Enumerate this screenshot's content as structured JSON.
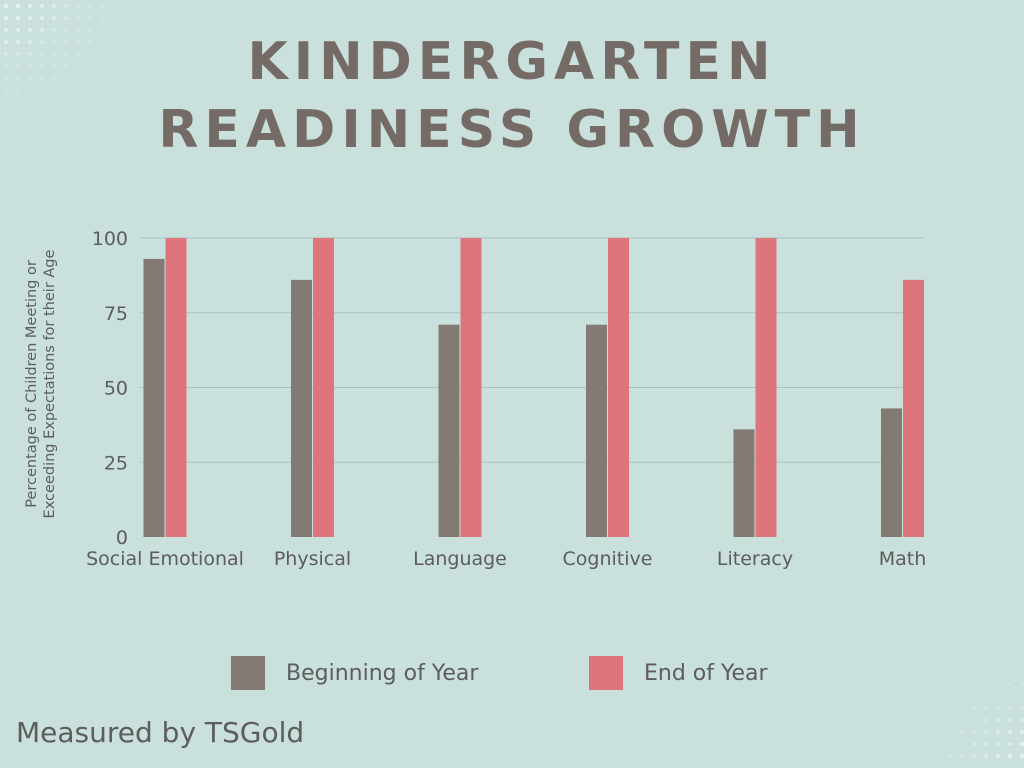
{
  "colors": {
    "background": "#c9e0dc",
    "title": "#756b66",
    "beginning": "#837a74",
    "end": "#de757c",
    "grid": "#a9c2be",
    "text": "#5d5d5d"
  },
  "footer": "Measured by TSGold",
  "chart_data": {
    "type": "bar",
    "title": [
      "KINDERGARTEN",
      "READINESS GROWTH"
    ],
    "ylabel": [
      "Percentage of Children Meeting or",
      "Exceeding Expectations for their Age"
    ],
    "xlabel": "",
    "ylim": [
      0,
      100
    ],
    "yticks": [
      0,
      25,
      50,
      75,
      100
    ],
    "grid": true,
    "legend_position": "bottom",
    "categories": [
      "Social Emotional",
      "Physical",
      "Language",
      "Cognitive",
      "Literacy",
      "Math"
    ],
    "series": [
      {
        "name": "Beginning of Year",
        "values": [
          93,
          86,
          71,
          71,
          36,
          43
        ]
      },
      {
        "name": "End of Year",
        "values": [
          100,
          100,
          100,
          100,
          100,
          86
        ]
      }
    ]
  }
}
